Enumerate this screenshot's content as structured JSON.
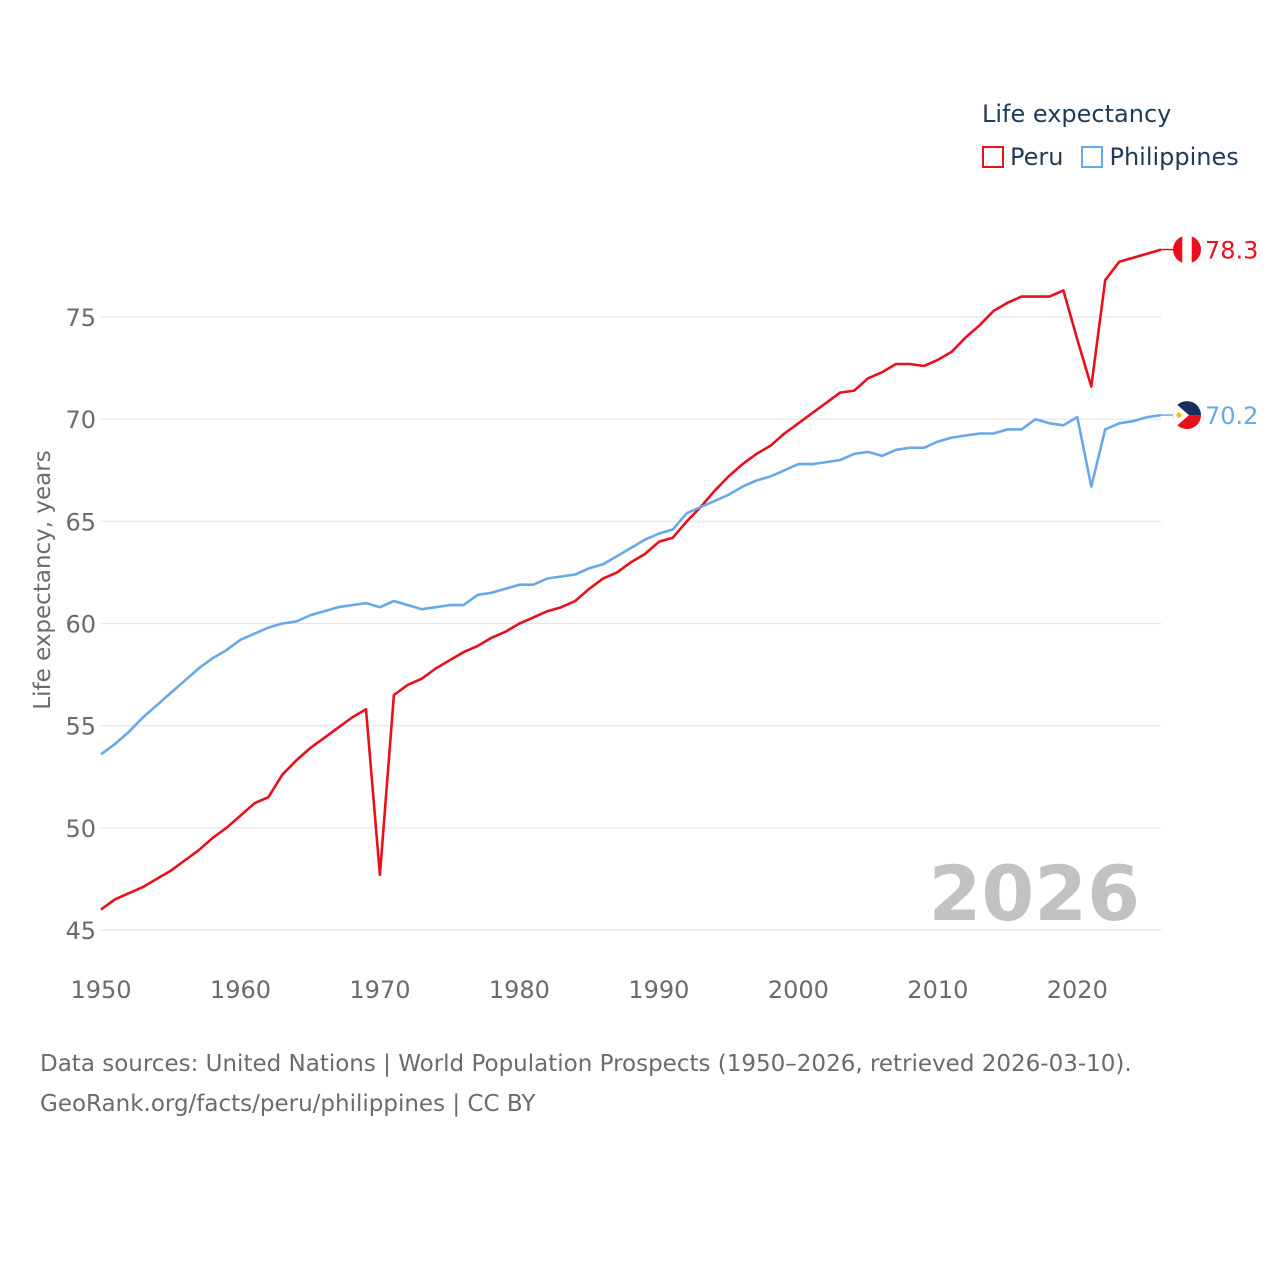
{
  "colors": {
    "peru": "#e8101a",
    "philippines": "#69a8e6",
    "grid": "#e5e5e5",
    "axis_text": "#6b6b6b",
    "year_watermark": "#c2c2c2",
    "legend_text": "#1f3b57"
  },
  "legend": {
    "title": "Life expectancy",
    "items": [
      "Peru",
      "Philippines"
    ]
  },
  "year_label": "2026",
  "source": {
    "line1": "Data sources: United Nations | World Population Prospects (1950–2026, retrieved 2026-03-10).",
    "line2": "GeoRank.org/facts/peru/philippines | CC BY"
  },
  "chart_data": {
    "type": "line",
    "title": "",
    "xlabel": "",
    "ylabel": "Life expectancy, years",
    "xlim": [
      1950,
      2026
    ],
    "ylim": [
      45,
      79
    ],
    "x_ticks": [
      1950,
      1960,
      1970,
      1980,
      1990,
      2000,
      2010,
      2020
    ],
    "y_ticks": [
      45,
      50,
      55,
      60,
      65,
      70,
      75
    ],
    "x": [
      1950,
      1951,
      1952,
      1953,
      1954,
      1955,
      1956,
      1957,
      1958,
      1959,
      1960,
      1961,
      1962,
      1963,
      1964,
      1965,
      1966,
      1967,
      1968,
      1969,
      1970,
      1971,
      1972,
      1973,
      1974,
      1975,
      1976,
      1977,
      1978,
      1979,
      1980,
      1981,
      1982,
      1983,
      1984,
      1985,
      1986,
      1987,
      1988,
      1989,
      1990,
      1991,
      1992,
      1993,
      1994,
      1995,
      1996,
      1997,
      1998,
      1999,
      2000,
      2001,
      2002,
      2003,
      2004,
      2005,
      2006,
      2007,
      2008,
      2009,
      2010,
      2011,
      2012,
      2013,
      2014,
      2015,
      2016,
      2017,
      2018,
      2019,
      2020,
      2021,
      2022,
      2023,
      2024,
      2025,
      2026
    ],
    "series": [
      {
        "name": "Peru",
        "end_label": "78.3",
        "values": [
          46.0,
          46.5,
          46.8,
          47.1,
          47.5,
          47.9,
          48.4,
          48.9,
          49.5,
          50.0,
          50.6,
          51.2,
          51.5,
          52.6,
          53.3,
          53.9,
          54.4,
          54.9,
          55.4,
          55.8,
          47.7,
          56.5,
          57.0,
          57.3,
          57.8,
          58.2,
          58.6,
          58.9,
          59.3,
          59.6,
          60.0,
          60.3,
          60.6,
          60.8,
          61.1,
          61.7,
          62.2,
          62.5,
          63.0,
          63.4,
          64.0,
          64.2,
          65.0,
          65.7,
          66.5,
          67.2,
          67.8,
          68.3,
          68.7,
          69.3,
          69.8,
          70.3,
          70.8,
          71.3,
          71.4,
          72.0,
          72.3,
          72.7,
          72.7,
          72.6,
          72.9,
          73.3,
          74.0,
          74.6,
          75.3,
          75.7,
          76.0,
          76.0,
          76.0,
          76.3,
          73.9,
          71.6,
          76.8,
          77.7,
          77.9,
          78.1,
          78.3
        ]
      },
      {
        "name": "Philippines",
        "end_label": "70.2",
        "values": [
          53.6,
          54.1,
          54.7,
          55.4,
          56.0,
          56.6,
          57.2,
          57.8,
          58.3,
          58.7,
          59.2,
          59.5,
          59.8,
          60.0,
          60.1,
          60.4,
          60.6,
          60.8,
          60.9,
          61.0,
          60.8,
          61.1,
          60.9,
          60.7,
          60.8,
          60.9,
          60.9,
          61.4,
          61.5,
          61.7,
          61.9,
          61.9,
          62.2,
          62.3,
          62.4,
          62.7,
          62.9,
          63.3,
          63.7,
          64.1,
          64.4,
          64.6,
          65.4,
          65.7,
          66.0,
          66.3,
          66.7,
          67.0,
          67.2,
          67.5,
          67.8,
          67.8,
          67.9,
          68.0,
          68.3,
          68.4,
          68.2,
          68.5,
          68.6,
          68.6,
          68.9,
          69.1,
          69.2,
          69.3,
          69.3,
          69.5,
          69.5,
          70.0,
          69.8,
          69.7,
          70.1,
          66.7,
          69.5,
          69.8,
          69.9,
          70.1,
          70.2
        ]
      }
    ]
  }
}
